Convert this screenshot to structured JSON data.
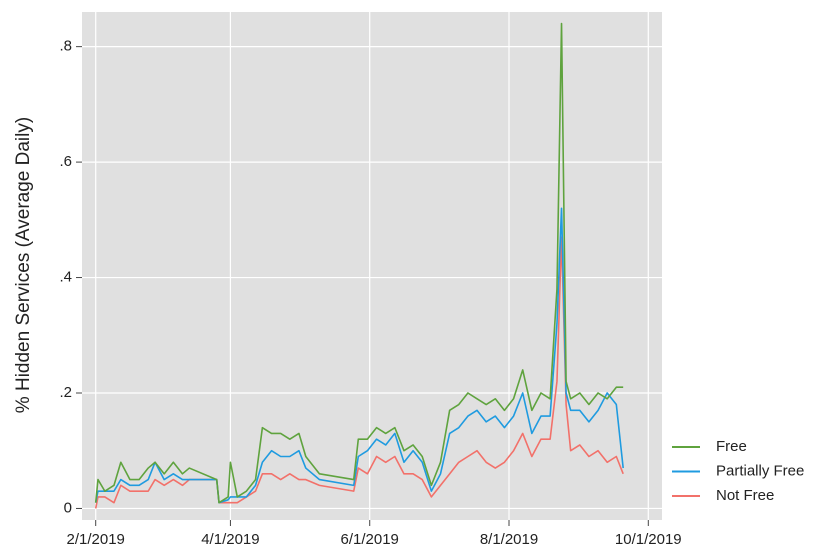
{
  "chart_data": {
    "type": "line",
    "ylabel": "% Hidden Services (Average Daily)",
    "x": [
      "2019-02-01",
      "2019-02-02",
      "2019-02-05",
      "2019-02-09",
      "2019-02-12",
      "2019-02-16",
      "2019-02-20",
      "2019-02-24",
      "2019-02-27",
      "2019-03-03",
      "2019-03-07",
      "2019-03-11",
      "2019-03-14",
      "2019-03-26",
      "2019-03-27",
      "2019-03-31",
      "2019-04-01",
      "2019-04-04",
      "2019-04-08",
      "2019-04-12",
      "2019-04-15",
      "2019-04-19",
      "2019-04-23",
      "2019-04-27",
      "2019-05-01",
      "2019-05-04",
      "2019-05-10",
      "2019-05-25",
      "2019-05-27",
      "2019-05-31",
      "2019-06-04",
      "2019-06-08",
      "2019-06-12",
      "2019-06-16",
      "2019-06-20",
      "2019-06-24",
      "2019-06-28",
      "2019-07-02",
      "2019-07-06",
      "2019-07-10",
      "2019-07-14",
      "2019-07-18",
      "2019-07-22",
      "2019-07-26",
      "2019-07-30",
      "2019-08-03",
      "2019-08-07",
      "2019-08-11",
      "2019-08-15",
      "2019-08-19",
      "2019-08-22",
      "2019-08-24",
      "2019-08-26",
      "2019-08-28",
      "2019-09-01",
      "2019-09-05",
      "2019-09-09",
      "2019-09-13",
      "2019-09-17",
      "2019-09-20"
    ],
    "series": [
      {
        "name": "Free",
        "color": "#5fa33e",
        "values": [
          0.01,
          0.05,
          0.03,
          0.04,
          0.08,
          0.05,
          0.05,
          0.07,
          0.08,
          0.06,
          0.08,
          0.06,
          0.07,
          0.05,
          0.01,
          0.02,
          0.08,
          0.02,
          0.03,
          0.05,
          0.14,
          0.13,
          0.13,
          0.12,
          0.13,
          0.09,
          0.06,
          0.05,
          0.12,
          0.12,
          0.14,
          0.13,
          0.14,
          0.1,
          0.11,
          0.09,
          0.04,
          0.08,
          0.17,
          0.18,
          0.2,
          0.19,
          0.18,
          0.19,
          0.17,
          0.19,
          0.24,
          0.17,
          0.2,
          0.19,
          0.38,
          0.84,
          0.22,
          0.19,
          0.2,
          0.18,
          0.2,
          0.19,
          0.21,
          0.21
        ]
      },
      {
        "name": "Partially Free",
        "color": "#1f9be0",
        "values": [
          0.01,
          0.03,
          0.03,
          0.03,
          0.05,
          0.04,
          0.04,
          0.05,
          0.08,
          0.05,
          0.06,
          0.05,
          0.05,
          0.05,
          0.01,
          0.015,
          0.02,
          0.02,
          0.02,
          0.04,
          0.08,
          0.1,
          0.09,
          0.09,
          0.1,
          0.07,
          0.05,
          0.04,
          0.09,
          0.1,
          0.12,
          0.11,
          0.13,
          0.08,
          0.1,
          0.08,
          0.03,
          0.06,
          0.13,
          0.14,
          0.16,
          0.17,
          0.15,
          0.16,
          0.14,
          0.16,
          0.2,
          0.13,
          0.16,
          0.16,
          0.32,
          0.52,
          0.2,
          0.17,
          0.17,
          0.15,
          0.17,
          0.2,
          0.18,
          0.07
        ]
      },
      {
        "name": "Not Free",
        "color": "#f2716a",
        "values": [
          0.0,
          0.02,
          0.02,
          0.01,
          0.04,
          0.03,
          0.03,
          0.03,
          0.05,
          0.04,
          0.05,
          0.04,
          0.05,
          0.05,
          0.01,
          0.01,
          0.01,
          0.01,
          0.02,
          0.03,
          0.06,
          0.06,
          0.05,
          0.06,
          0.05,
          0.05,
          0.04,
          0.03,
          0.07,
          0.06,
          0.09,
          0.08,
          0.09,
          0.06,
          0.06,
          0.05,
          0.02,
          0.04,
          0.06,
          0.08,
          0.09,
          0.1,
          0.08,
          0.07,
          0.08,
          0.1,
          0.13,
          0.09,
          0.12,
          0.12,
          0.22,
          0.47,
          0.18,
          0.1,
          0.11,
          0.09,
          0.1,
          0.08,
          0.09,
          0.06
        ]
      }
    ],
    "xlim": [
      "2019-01-26",
      "2019-10-07"
    ],
    "xticks": [
      {
        "value": "2019-02-01",
        "label": "2/1/2019"
      },
      {
        "value": "2019-04-01",
        "label": "4/1/2019"
      },
      {
        "value": "2019-06-01",
        "label": "6/1/2019"
      },
      {
        "value": "2019-08-01",
        "label": "8/1/2019"
      },
      {
        "value": "2019-10-01",
        "label": "10/1/2019"
      }
    ],
    "ylim": [
      -0.02,
      0.86
    ],
    "yticks": [
      0,
      {
        "value": 0.2,
        "label": ".2"
      },
      {
        "value": 0.4,
        "label": ".4"
      },
      {
        "value": 0.6,
        "label": ".6"
      },
      {
        "value": 0.8,
        "label": ".8"
      }
    ],
    "grid": true,
    "legend": "right"
  }
}
